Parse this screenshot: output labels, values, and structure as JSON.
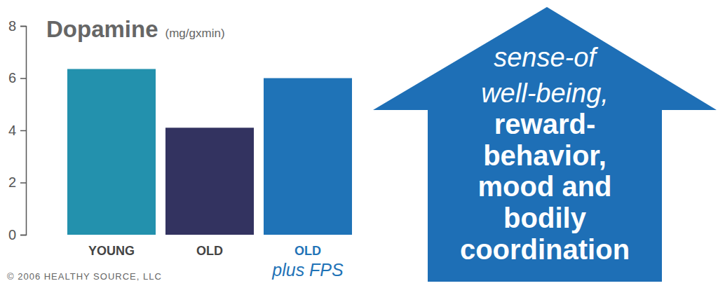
{
  "chart_data": {
    "type": "bar",
    "title": "Dopamine",
    "ylabel": "(mg/gxmin)",
    "categories": [
      "YOUNG",
      "OLD",
      "OLD\nplus FPS"
    ],
    "values": [
      6.35,
      4.1,
      6.0
    ],
    "colors": [
      "#2391ad",
      "#333360",
      "#1f73b7"
    ],
    "ylim": [
      0,
      8
    ],
    "yticks": [
      0,
      2,
      4,
      6,
      8
    ],
    "grid": false,
    "data_labels": false,
    "annotations": [
      "sense-of\nwell-being,",
      "reward-\nbehavior,\nmood and\nbodily\ncoordination"
    ],
    "source": "© 2006 HEALTHY SOURCE, LLC"
  }
}
